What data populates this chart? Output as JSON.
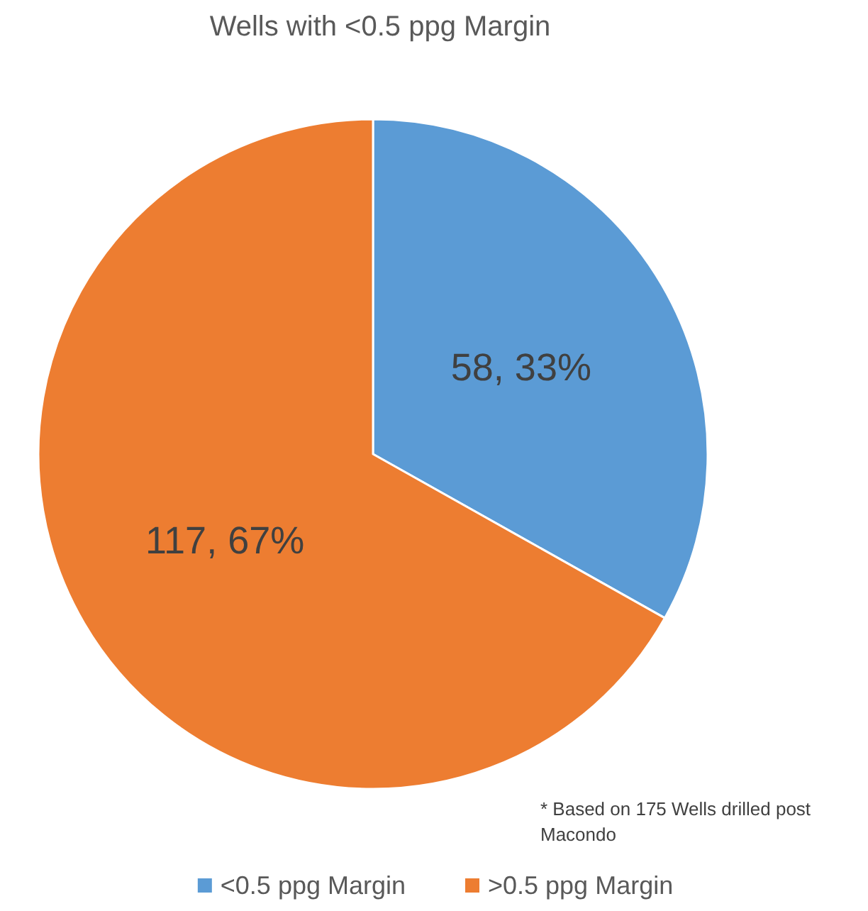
{
  "chart_data": {
    "type": "pie",
    "title": "Wells with <0.5 ppg Margin",
    "categories": [
      "<0.5 ppg Margin",
      ">0.5 ppg Margin"
    ],
    "values": [
      58,
      117
    ],
    "colors": [
      "#5b9bd5",
      "#ed7d31"
    ],
    "value_labels": [
      "58, 33%",
      "117, 67%"
    ],
    "legend": "bottom",
    "annotations": [
      "* Based on 175 Wells drilled post Macondo"
    ]
  }
}
